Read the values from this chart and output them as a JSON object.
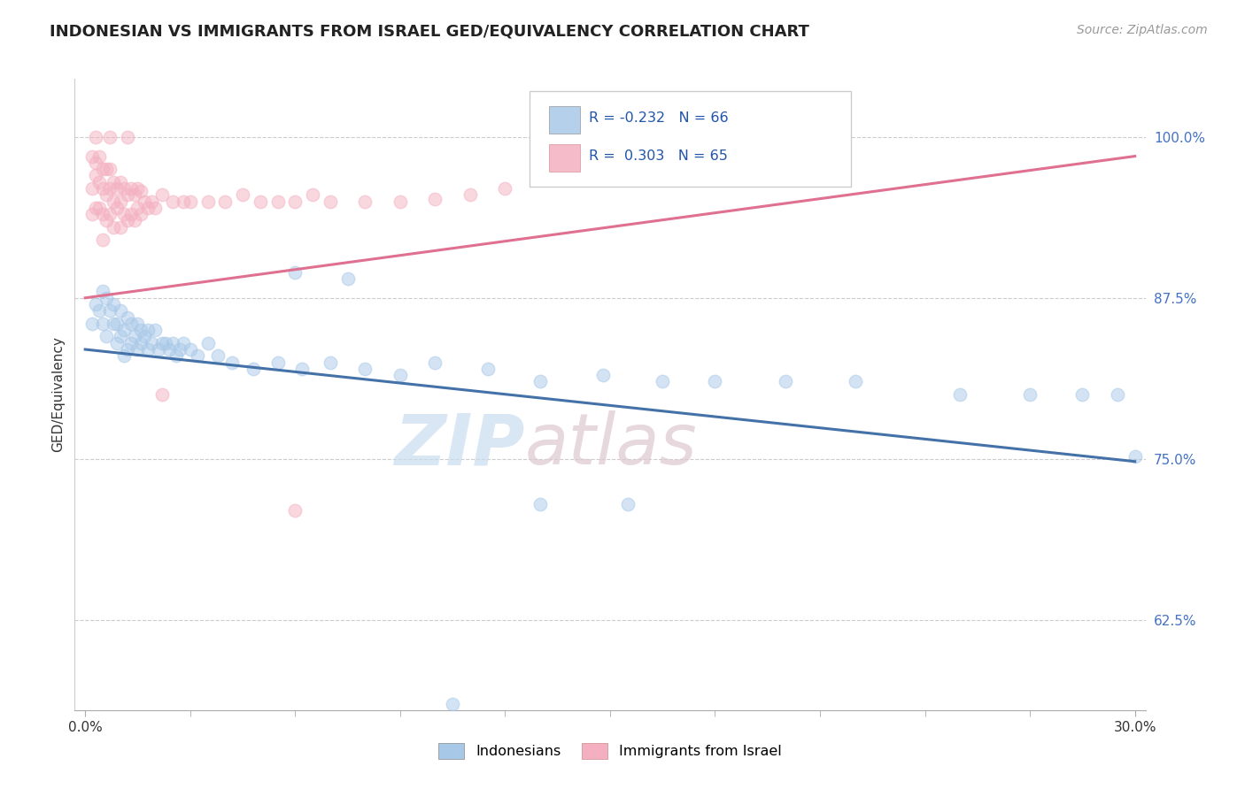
{
  "title": "INDONESIAN VS IMMIGRANTS FROM ISRAEL GED/EQUIVALENCY CORRELATION CHART",
  "source_text": "Source: ZipAtlas.com",
  "ylabel": "GED/Equivalency",
  "ytick_labels": [
    "62.5%",
    "75.0%",
    "87.5%",
    "100.0%"
  ],
  "ytick_values": [
    0.625,
    0.75,
    0.875,
    1.0
  ],
  "xlim": [
    0.0,
    0.3
  ],
  "ylim": [
    0.555,
    1.045
  ],
  "blue_R": "-0.232",
  "blue_N": "66",
  "pink_R": "0.303",
  "pink_N": "65",
  "blue_color": "#a8c8e8",
  "pink_color": "#f4b0c0",
  "blue_line_color": "#4472a8",
  "pink_line_color": "#e07090",
  "blue_line": [
    0.0,
    0.835,
    0.3,
    0.748
  ],
  "pink_line": [
    0.0,
    0.875,
    0.3,
    0.985
  ],
  "indonesians_x": [
    0.002,
    0.003,
    0.004,
    0.005,
    0.005,
    0.006,
    0.006,
    0.007,
    0.008,
    0.008,
    0.009,
    0.009,
    0.01,
    0.01,
    0.011,
    0.011,
    0.012,
    0.012,
    0.013,
    0.013,
    0.014,
    0.015,
    0.015,
    0.016,
    0.016,
    0.017,
    0.018,
    0.018,
    0.019,
    0.02,
    0.021,
    0.022,
    0.023,
    0.024,
    0.025,
    0.026,
    0.027,
    0.028,
    0.03,
    0.032,
    0.035,
    0.038,
    0.042,
    0.048,
    0.055,
    0.062,
    0.07,
    0.08,
    0.09,
    0.1,
    0.115,
    0.13,
    0.148,
    0.165,
    0.18,
    0.2,
    0.22,
    0.25,
    0.27,
    0.285,
    0.295,
    0.3,
    0.06,
    0.075,
    0.13,
    0.155
  ],
  "indonesians_y": [
    0.855,
    0.87,
    0.865,
    0.88,
    0.855,
    0.875,
    0.845,
    0.865,
    0.855,
    0.87,
    0.855,
    0.84,
    0.865,
    0.845,
    0.85,
    0.83,
    0.86,
    0.835,
    0.855,
    0.84,
    0.845,
    0.855,
    0.835,
    0.85,
    0.84,
    0.845,
    0.835,
    0.85,
    0.84,
    0.85,
    0.835,
    0.84,
    0.84,
    0.835,
    0.84,
    0.83,
    0.835,
    0.84,
    0.835,
    0.83,
    0.84,
    0.83,
    0.825,
    0.82,
    0.825,
    0.82,
    0.825,
    0.82,
    0.815,
    0.825,
    0.82,
    0.81,
    0.815,
    0.81,
    0.81,
    0.81,
    0.81,
    0.8,
    0.8,
    0.8,
    0.8,
    0.752,
    0.895,
    0.89,
    0.715,
    0.715
  ],
  "indonesians_outlier_x": [
    0.105
  ],
  "indonesians_outlier_y": [
    0.56
  ],
  "israel_x": [
    0.002,
    0.002,
    0.002,
    0.003,
    0.003,
    0.003,
    0.004,
    0.004,
    0.004,
    0.005,
    0.005,
    0.005,
    0.005,
    0.006,
    0.006,
    0.006,
    0.007,
    0.007,
    0.007,
    0.008,
    0.008,
    0.008,
    0.009,
    0.009,
    0.01,
    0.01,
    0.01,
    0.011,
    0.011,
    0.012,
    0.012,
    0.013,
    0.013,
    0.014,
    0.014,
    0.015,
    0.015,
    0.016,
    0.016,
    0.017,
    0.018,
    0.019,
    0.02,
    0.022,
    0.025,
    0.028,
    0.03,
    0.035,
    0.04,
    0.045,
    0.05,
    0.055,
    0.06,
    0.065,
    0.07,
    0.08,
    0.09,
    0.1,
    0.11,
    0.12,
    0.003,
    0.007,
    0.012,
    0.022,
    0.06
  ],
  "israel_y": [
    0.985,
    0.96,
    0.94,
    0.98,
    0.97,
    0.945,
    0.985,
    0.965,
    0.945,
    0.975,
    0.96,
    0.94,
    0.92,
    0.975,
    0.955,
    0.935,
    0.975,
    0.96,
    0.94,
    0.965,
    0.95,
    0.93,
    0.96,
    0.945,
    0.965,
    0.95,
    0.93,
    0.96,
    0.94,
    0.955,
    0.935,
    0.96,
    0.94,
    0.955,
    0.935,
    0.96,
    0.945,
    0.958,
    0.94,
    0.95,
    0.945,
    0.95,
    0.945,
    0.955,
    0.95,
    0.95,
    0.95,
    0.95,
    0.95,
    0.955,
    0.95,
    0.95,
    0.95,
    0.955,
    0.95,
    0.95,
    0.95,
    0.952,
    0.955,
    0.96,
    1.0,
    1.0,
    1.0,
    0.8,
    0.71
  ],
  "watermark_zip": "ZIP",
  "watermark_atlas": "atlas"
}
